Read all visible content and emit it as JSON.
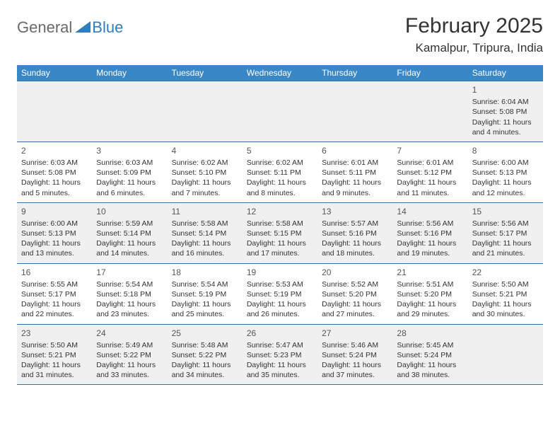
{
  "logo": {
    "general": "General",
    "blue": "Blue"
  },
  "title": "February 2025",
  "location": "Kamalpur, Tripura, India",
  "colors": {
    "headerBg": "#3a87c8",
    "headerText": "#ffffff",
    "border": "#3a6ea5",
    "altRow": "#f0f0f0",
    "bodyText": "#333333"
  },
  "dayNames": [
    "Sunday",
    "Monday",
    "Tuesday",
    "Wednesday",
    "Thursday",
    "Friday",
    "Saturday"
  ],
  "weeks": [
    [
      {
        "n": "",
        "sr": "",
        "ss": "",
        "d1": "",
        "d2": ""
      },
      {
        "n": "",
        "sr": "",
        "ss": "",
        "d1": "",
        "d2": ""
      },
      {
        "n": "",
        "sr": "",
        "ss": "",
        "d1": "",
        "d2": ""
      },
      {
        "n": "",
        "sr": "",
        "ss": "",
        "d1": "",
        "d2": ""
      },
      {
        "n": "",
        "sr": "",
        "ss": "",
        "d1": "",
        "d2": ""
      },
      {
        "n": "",
        "sr": "",
        "ss": "",
        "d1": "",
        "d2": ""
      },
      {
        "n": "1",
        "sr": "Sunrise: 6:04 AM",
        "ss": "Sunset: 5:08 PM",
        "d1": "Daylight: 11 hours",
        "d2": "and 4 minutes."
      }
    ],
    [
      {
        "n": "2",
        "sr": "Sunrise: 6:03 AM",
        "ss": "Sunset: 5:08 PM",
        "d1": "Daylight: 11 hours",
        "d2": "and 5 minutes."
      },
      {
        "n": "3",
        "sr": "Sunrise: 6:03 AM",
        "ss": "Sunset: 5:09 PM",
        "d1": "Daylight: 11 hours",
        "d2": "and 6 minutes."
      },
      {
        "n": "4",
        "sr": "Sunrise: 6:02 AM",
        "ss": "Sunset: 5:10 PM",
        "d1": "Daylight: 11 hours",
        "d2": "and 7 minutes."
      },
      {
        "n": "5",
        "sr": "Sunrise: 6:02 AM",
        "ss": "Sunset: 5:11 PM",
        "d1": "Daylight: 11 hours",
        "d2": "and 8 minutes."
      },
      {
        "n": "6",
        "sr": "Sunrise: 6:01 AM",
        "ss": "Sunset: 5:11 PM",
        "d1": "Daylight: 11 hours",
        "d2": "and 9 minutes."
      },
      {
        "n": "7",
        "sr": "Sunrise: 6:01 AM",
        "ss": "Sunset: 5:12 PM",
        "d1": "Daylight: 11 hours",
        "d2": "and 11 minutes."
      },
      {
        "n": "8",
        "sr": "Sunrise: 6:00 AM",
        "ss": "Sunset: 5:13 PM",
        "d1": "Daylight: 11 hours",
        "d2": "and 12 minutes."
      }
    ],
    [
      {
        "n": "9",
        "sr": "Sunrise: 6:00 AM",
        "ss": "Sunset: 5:13 PM",
        "d1": "Daylight: 11 hours",
        "d2": "and 13 minutes."
      },
      {
        "n": "10",
        "sr": "Sunrise: 5:59 AM",
        "ss": "Sunset: 5:14 PM",
        "d1": "Daylight: 11 hours",
        "d2": "and 14 minutes."
      },
      {
        "n": "11",
        "sr": "Sunrise: 5:58 AM",
        "ss": "Sunset: 5:14 PM",
        "d1": "Daylight: 11 hours",
        "d2": "and 16 minutes."
      },
      {
        "n": "12",
        "sr": "Sunrise: 5:58 AM",
        "ss": "Sunset: 5:15 PM",
        "d1": "Daylight: 11 hours",
        "d2": "and 17 minutes."
      },
      {
        "n": "13",
        "sr": "Sunrise: 5:57 AM",
        "ss": "Sunset: 5:16 PM",
        "d1": "Daylight: 11 hours",
        "d2": "and 18 minutes."
      },
      {
        "n": "14",
        "sr": "Sunrise: 5:56 AM",
        "ss": "Sunset: 5:16 PM",
        "d1": "Daylight: 11 hours",
        "d2": "and 19 minutes."
      },
      {
        "n": "15",
        "sr": "Sunrise: 5:56 AM",
        "ss": "Sunset: 5:17 PM",
        "d1": "Daylight: 11 hours",
        "d2": "and 21 minutes."
      }
    ],
    [
      {
        "n": "16",
        "sr": "Sunrise: 5:55 AM",
        "ss": "Sunset: 5:17 PM",
        "d1": "Daylight: 11 hours",
        "d2": "and 22 minutes."
      },
      {
        "n": "17",
        "sr": "Sunrise: 5:54 AM",
        "ss": "Sunset: 5:18 PM",
        "d1": "Daylight: 11 hours",
        "d2": "and 23 minutes."
      },
      {
        "n": "18",
        "sr": "Sunrise: 5:54 AM",
        "ss": "Sunset: 5:19 PM",
        "d1": "Daylight: 11 hours",
        "d2": "and 25 minutes."
      },
      {
        "n": "19",
        "sr": "Sunrise: 5:53 AM",
        "ss": "Sunset: 5:19 PM",
        "d1": "Daylight: 11 hours",
        "d2": "and 26 minutes."
      },
      {
        "n": "20",
        "sr": "Sunrise: 5:52 AM",
        "ss": "Sunset: 5:20 PM",
        "d1": "Daylight: 11 hours",
        "d2": "and 27 minutes."
      },
      {
        "n": "21",
        "sr": "Sunrise: 5:51 AM",
        "ss": "Sunset: 5:20 PM",
        "d1": "Daylight: 11 hours",
        "d2": "and 29 minutes."
      },
      {
        "n": "22",
        "sr": "Sunrise: 5:50 AM",
        "ss": "Sunset: 5:21 PM",
        "d1": "Daylight: 11 hours",
        "d2": "and 30 minutes."
      }
    ],
    [
      {
        "n": "23",
        "sr": "Sunrise: 5:50 AM",
        "ss": "Sunset: 5:21 PM",
        "d1": "Daylight: 11 hours",
        "d2": "and 31 minutes."
      },
      {
        "n": "24",
        "sr": "Sunrise: 5:49 AM",
        "ss": "Sunset: 5:22 PM",
        "d1": "Daylight: 11 hours",
        "d2": "and 33 minutes."
      },
      {
        "n": "25",
        "sr": "Sunrise: 5:48 AM",
        "ss": "Sunset: 5:22 PM",
        "d1": "Daylight: 11 hours",
        "d2": "and 34 minutes."
      },
      {
        "n": "26",
        "sr": "Sunrise: 5:47 AM",
        "ss": "Sunset: 5:23 PM",
        "d1": "Daylight: 11 hours",
        "d2": "and 35 minutes."
      },
      {
        "n": "27",
        "sr": "Sunrise: 5:46 AM",
        "ss": "Sunset: 5:24 PM",
        "d1": "Daylight: 11 hours",
        "d2": "and 37 minutes."
      },
      {
        "n": "28",
        "sr": "Sunrise: 5:45 AM",
        "ss": "Sunset: 5:24 PM",
        "d1": "Daylight: 11 hours",
        "d2": "and 38 minutes."
      },
      {
        "n": "",
        "sr": "",
        "ss": "",
        "d1": "",
        "d2": ""
      }
    ]
  ]
}
